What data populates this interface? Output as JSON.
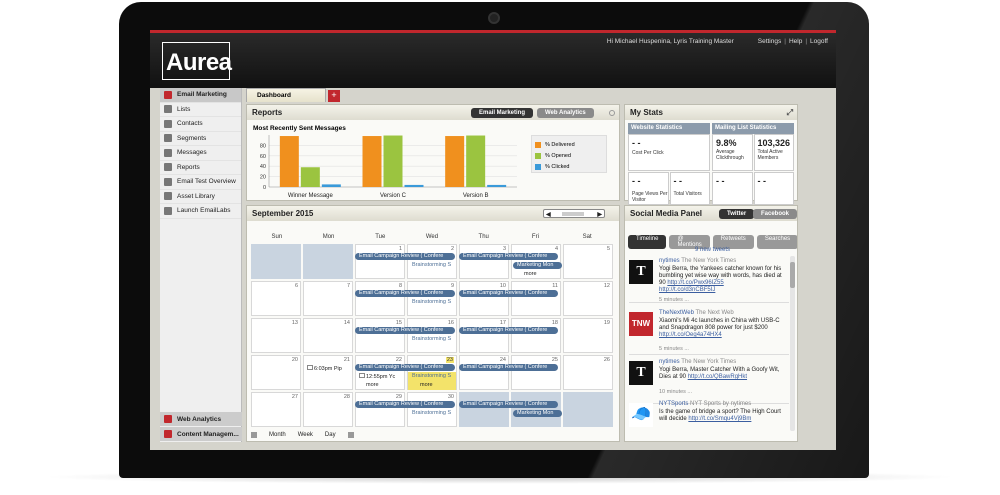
{
  "app": {
    "logo": "Aurea",
    "greeting": "Hi Michael Huspenina, Lyris Training Master",
    "settings": "Settings",
    "help": "Help",
    "logoff": "Logoff"
  },
  "sidebar": {
    "header": "Email Marketing",
    "items": [
      {
        "label": "Lists",
        "icon": "list-icon"
      },
      {
        "label": "Contacts",
        "icon": "contacts-icon"
      },
      {
        "label": "Segments",
        "icon": "segments-icon"
      },
      {
        "label": "Messages",
        "icon": "messages-icon"
      },
      {
        "label": "Reports",
        "icon": "reports-icon"
      },
      {
        "label": "Email Test Overview",
        "icon": "test-icon"
      },
      {
        "label": "Asset Library",
        "icon": "asset-icon"
      },
      {
        "label": "Launch EmailLabs",
        "icon": "launch-icon"
      }
    ],
    "bottom": [
      "Web Analytics",
      "Content Managem..."
    ]
  },
  "tabs": {
    "dashboard": "Dashboard",
    "add": "+"
  },
  "reports": {
    "title": "Reports",
    "btn_email": "Email Marketing",
    "btn_web": "Web Analytics",
    "chart_title": "Most Recently Sent Messages"
  },
  "chart_data": {
    "type": "bar",
    "title": "Most Recently Sent Messages",
    "categories": [
      "Winner Message",
      "Version C",
      "Version B"
    ],
    "series": [
      {
        "name": "% Delivered",
        "values": [
          98,
          98,
          98
        ],
        "color": "#f0901e"
      },
      {
        "name": "% Opened",
        "values": [
          38,
          99,
          99
        ],
        "color": "#9bc440"
      },
      {
        "name": "% Clicked",
        "values": [
          5,
          4,
          4
        ],
        "color": "#3a9ad9"
      }
    ],
    "yticks": [
      0,
      20,
      40,
      60,
      80
    ],
    "ylim": [
      0,
      100
    ],
    "legend": "right"
  },
  "calendar": {
    "title": "September 2015",
    "days": [
      "Sun",
      "Mon",
      "Tue",
      "Wed",
      "Thu",
      "Fri",
      "Sat"
    ],
    "nums": [
      "1",
      "2",
      "3",
      "4",
      "5",
      "6",
      "7",
      "8",
      "9",
      "10",
      "11",
      "12",
      "13",
      "14",
      "15",
      "16",
      "17",
      "18",
      "19",
      "20",
      "21",
      "22",
      "23",
      "24",
      "25",
      "26",
      "27",
      "28",
      "29",
      "30"
    ],
    "ev_review": "Email Campaign Review ( Confere",
    "ev_review_b": "Email Campaign Review ( Confere",
    "ev_brainstorm": "Brainstorming S",
    "ev_marketing": "Marketing Mon",
    "ev_pip": "6:03pm Pip",
    "ev_yc": "12:55pm Yc",
    "more": "more",
    "views": [
      "Month",
      "Week",
      "Day"
    ]
  },
  "stats": {
    "title": "My Stats",
    "website_head": "Website Statistics",
    "mailing_head": "Mailing List Statistics",
    "cpc_value": "- -",
    "cpc_label": "Cost Per Click",
    "ctr_value": "9.8%",
    "ctr_label": "Average Clickthrough",
    "members_value": "103,326",
    "members_label": "Total Active Members",
    "pv_value": "- -",
    "pv_label": "Page Views Per Visitor",
    "tv_value": "- -",
    "tv_label": "Total Visitors",
    "m3_value": "- -",
    "m4_value": "- -"
  },
  "social": {
    "title": "Social Media Panel",
    "twitter": "Twitter",
    "facebook": "Facebook",
    "subtabs": [
      "Timeline",
      "@ Mentions",
      "Retweets",
      "Searches"
    ],
    "new_tweets": "9 new tweets",
    "tweets": [
      {
        "handle": "nytimes",
        "name": "The New York Times",
        "text": "Yogi Berra, the Yankees catcher known for his bumbling yet wise way with words, has died at 90 ",
        "link1": "http://t.co/Pwx96IZ55",
        "link2": "http://t.co/d3nCBF5IJ",
        "time": "5 minutes ...",
        "avatar": "T"
      },
      {
        "handle": "TheNextWeb",
        "name": "The Next Web",
        "text": "Xiaomi's Mi 4c launches in China with USB-C and Snapdragon 808 power for just $200 ",
        "link1": "http://t.co/Oeg4a74HX4",
        "link2": "",
        "time": "5 minutes ...",
        "avatar": "TNW"
      },
      {
        "handle": "nytimes",
        "name": "The New York Times",
        "text": "Yogi Berra, Master Catcher With a Goofy Wit, Dies at 90 ",
        "link1": "http://t.co/QBawRgHkt",
        "link2": "",
        "time": "10 minutes ...",
        "avatar": "T"
      },
      {
        "handle": "NYTSports",
        "name": "NYT Sports by nytimes",
        "text": "Is the game of bridge a sport? The High Court will decide ",
        "link1": "http://t.co/Smqu4Vj9Bm",
        "link2": "",
        "time": "",
        "avatar": "cap"
      }
    ]
  }
}
